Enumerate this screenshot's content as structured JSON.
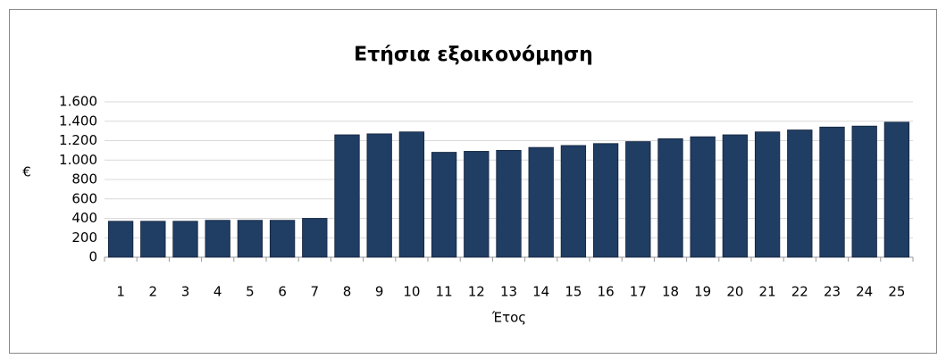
{
  "chart_data": {
    "type": "bar",
    "title": "Ετήσια εξοικονόμηση",
    "x_label": "Έτος",
    "y_label": "€",
    "categories": [
      "1",
      "2",
      "3",
      "4",
      "5",
      "6",
      "7",
      "8",
      "9",
      "10",
      "11",
      "12",
      "13",
      "14",
      "15",
      "16",
      "17",
      "18",
      "19",
      "20",
      "21",
      "22",
      "23",
      "24",
      "25"
    ],
    "values": [
      370,
      370,
      370,
      380,
      380,
      380,
      400,
      1260,
      1270,
      1290,
      1080,
      1090,
      1100,
      1130,
      1150,
      1170,
      1190,
      1220,
      1240,
      1260,
      1290,
      1310,
      1340,
      1350,
      1390
    ],
    "color": "#203d63",
    "ylim": [
      0,
      1600
    ],
    "yticks": [
      0,
      200,
      400,
      600,
      800,
      {
        "value": 1000,
        "label": "1.000"
      },
      {
        "value": 1200,
        "label": "1.200"
      },
      {
        "value": 1400,
        "label": "1.400"
      },
      {
        "value": 1600,
        "label": "1.600"
      }
    ],
    "grid": true
  }
}
